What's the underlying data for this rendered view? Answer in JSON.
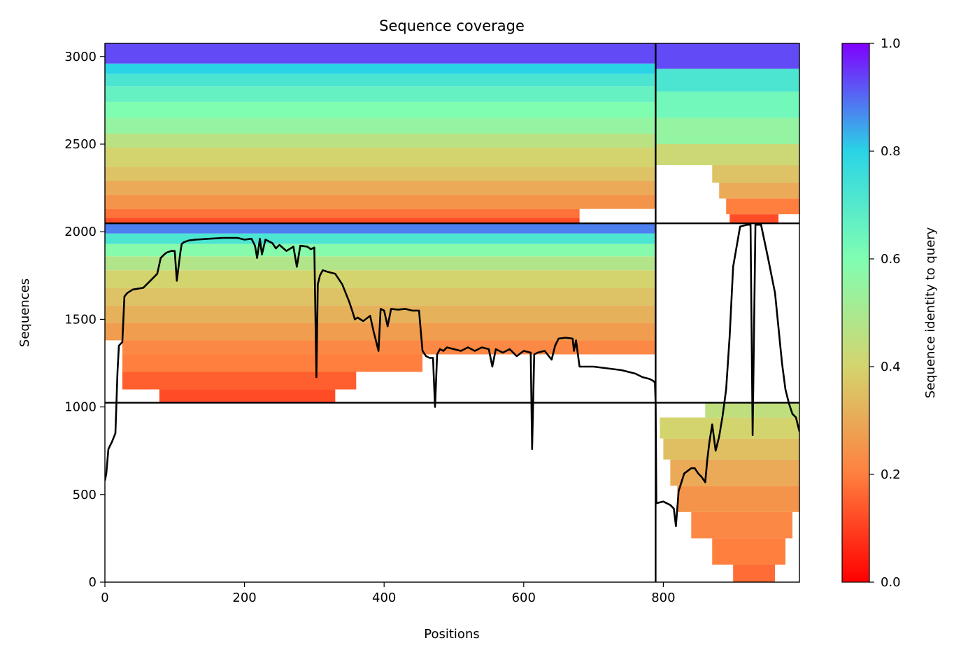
{
  "chart_data": {
    "type": "heatmap",
    "title": "Sequence coverage",
    "xlabel": "Positions",
    "ylabel": "Sequences",
    "xlim": [
      0,
      995
    ],
    "ylim": [
      0,
      3075
    ],
    "x_ticks": [
      0,
      200,
      400,
      600,
      800
    ],
    "y_ticks": [
      0,
      500,
      1000,
      1500,
      2000,
      2500,
      3000
    ],
    "colorbar": {
      "label": "Sequence identity to query",
      "colormap": "rainbow",
      "range": [
        0,
        1
      ],
      "ticks": [
        0.0,
        0.2,
        0.4,
        0.6,
        0.8,
        1.0
      ],
      "tick_labels": [
        "0.0",
        "0.2",
        "0.4",
        "0.6",
        "0.8",
        "1.0"
      ],
      "stops": [
        "#ff0000",
        "#ff7f3f",
        "#d4d46e",
        "#7ffeb2",
        "#2ad4e6",
        "#8000ff"
      ]
    },
    "dividers": {
      "vertical_x": 789,
      "horizontal_y": [
        1024,
        2048
      ]
    },
    "blocks": [
      {
        "x": [
          0,
          789
        ],
        "rows": [
          2048,
          3075
        ],
        "bands": [
          {
            "rows": [
              2048,
              2080
            ],
            "x": [
              0,
              680
            ],
            "identity": 0.12
          },
          {
            "rows": [
              2080,
              2130
            ],
            "x": [
              0,
              680
            ],
            "identity": 0.18
          },
          {
            "rows": [
              2130,
              2210
            ],
            "x": [
              0,
              789
            ],
            "identity": 0.25
          },
          {
            "rows": [
              2210,
              2290
            ],
            "x": [
              0,
              789
            ],
            "identity": 0.3
          },
          {
            "rows": [
              2290,
              2370
            ],
            "x": [
              0,
              789
            ],
            "identity": 0.36
          },
          {
            "rows": [
              2370,
              2480
            ],
            "x": [
              0,
              789
            ],
            "identity": 0.4
          },
          {
            "rows": [
              2480,
              2560
            ],
            "x": [
              0,
              789
            ],
            "identity": 0.46
          },
          {
            "rows": [
              2560,
              2650
            ],
            "x": [
              0,
              789
            ],
            "identity": 0.55
          },
          {
            "rows": [
              2650,
              2740
            ],
            "x": [
              0,
              789
            ],
            "identity": 0.6
          },
          {
            "rows": [
              2740,
              2830
            ],
            "x": [
              0,
              789
            ],
            "identity": 0.66
          },
          {
            "rows": [
              2830,
              2900
            ],
            "x": [
              0,
              789
            ],
            "identity": 0.72
          },
          {
            "rows": [
              2900,
              2960
            ],
            "x": [
              0,
              789
            ],
            "identity": 0.8
          },
          {
            "rows": [
              2960,
              3075
            ],
            "x": [
              0,
              789
            ],
            "identity": 0.93
          }
        ]
      },
      {
        "x": [
          789,
          995
        ],
        "rows": [
          2048,
          3075
        ],
        "bands": [
          {
            "rows": [
              2048,
              2100
            ],
            "x": [
              895,
              965
            ],
            "identity": 0.12
          },
          {
            "rows": [
              2100,
              2190
            ],
            "x": [
              890,
              995
            ],
            "identity": 0.2
          },
          {
            "rows": [
              2190,
              2280
            ],
            "x": [
              880,
              995
            ],
            "identity": 0.3
          },
          {
            "rows": [
              2280,
              2380
            ],
            "x": [
              870,
              995
            ],
            "identity": 0.36
          },
          {
            "rows": [
              2380,
              2500
            ],
            "x": [
              789,
              995
            ],
            "identity": 0.42
          },
          {
            "rows": [
              2500,
              2650
            ],
            "x": [
              789,
              995
            ],
            "identity": 0.55
          },
          {
            "rows": [
              2650,
              2800
            ],
            "x": [
              789,
              995
            ],
            "identity": 0.63
          },
          {
            "rows": [
              2800,
              2930
            ],
            "x": [
              789,
              995
            ],
            "identity": 0.72
          },
          {
            "rows": [
              2930,
              3075
            ],
            "x": [
              789,
              995
            ],
            "identity": 0.93
          }
        ]
      },
      {
        "x": [
          0,
          789
        ],
        "rows": [
          1024,
          2048
        ],
        "bands": [
          {
            "rows": [
              1024,
              1100
            ],
            "x": [
              78,
              330
            ],
            "identity": 0.12
          },
          {
            "rows": [
              1100,
              1200
            ],
            "x": [
              25,
              360
            ],
            "identity": 0.15
          },
          {
            "rows": [
              1200,
              1300
            ],
            "x": [
              25,
              455
            ],
            "identity": 0.2
          },
          {
            "rows": [
              1300,
              1380
            ],
            "x": [
              25,
              789
            ],
            "identity": 0.22
          },
          {
            "rows": [
              1380,
              1480
            ],
            "x": [
              0,
              789
            ],
            "identity": 0.27
          },
          {
            "rows": [
              1480,
              1580
            ],
            "x": [
              0,
              789
            ],
            "identity": 0.32
          },
          {
            "rows": [
              1580,
              1680
            ],
            "x": [
              0,
              789
            ],
            "identity": 0.36
          },
          {
            "rows": [
              1680,
              1780
            ],
            "x": [
              0,
              789
            ],
            "identity": 0.4
          },
          {
            "rows": [
              1780,
              1860
            ],
            "x": [
              0,
              789
            ],
            "identity": 0.48
          },
          {
            "rows": [
              1860,
              1930
            ],
            "x": [
              0,
              789
            ],
            "identity": 0.58
          },
          {
            "rows": [
              1930,
              1990
            ],
            "x": [
              0,
              789
            ],
            "identity": 0.72
          },
          {
            "rows": [
              1990,
              2048
            ],
            "x": [
              0,
              789
            ],
            "identity": 0.88
          }
        ]
      },
      {
        "x": [
          789,
          995
        ],
        "rows": [
          0,
          1024
        ],
        "bands": [
          {
            "rows": [
              0,
              100
            ],
            "x": [
              900,
              960
            ],
            "identity": 0.17
          },
          {
            "rows": [
              100,
              250
            ],
            "x": [
              870,
              975
            ],
            "identity": 0.2
          },
          {
            "rows": [
              250,
              400
            ],
            "x": [
              840,
              985
            ],
            "identity": 0.22
          },
          {
            "rows": [
              400,
              550
            ],
            "x": [
              820,
              995
            ],
            "identity": 0.25
          },
          {
            "rows": [
              550,
              700
            ],
            "x": [
              810,
              995
            ],
            "identity": 0.3
          },
          {
            "rows": [
              700,
              820
            ],
            "x": [
              800,
              995
            ],
            "identity": 0.35
          },
          {
            "rows": [
              820,
              940
            ],
            "x": [
              795,
              995
            ],
            "identity": 0.4
          },
          {
            "rows": [
              940,
              1024
            ],
            "x": [
              860,
              995
            ],
            "identity": 0.45
          }
        ]
      }
    ],
    "coverage_line": {
      "x": [
        0,
        2,
        5,
        10,
        15,
        18,
        20,
        25,
        28,
        32,
        40,
        55,
        65,
        75,
        80,
        85,
        88,
        95,
        100,
        103,
        108,
        110,
        113,
        120,
        130,
        150,
        170,
        190,
        200,
        210,
        215,
        218,
        222,
        225,
        230,
        240,
        245,
        250,
        260,
        270,
        275,
        280,
        290,
        295,
        300,
        303,
        305,
        308,
        312,
        320,
        330,
        340,
        350,
        355,
        358,
        362,
        370,
        380,
        385,
        392,
        395,
        400,
        405,
        410,
        420,
        430,
        440,
        450,
        455,
        460,
        465,
        470,
        473,
        476,
        480,
        485,
        490,
        500,
        510,
        520,
        530,
        540,
        550,
        555,
        560,
        570,
        580,
        590,
        600,
        610,
        612,
        615,
        620,
        630,
        640,
        645,
        650,
        660,
        670,
        672,
        675,
        680,
        700,
        720,
        740,
        760,
        770,
        780,
        785,
        788,
        789,
        790,
        800,
        810,
        815,
        818,
        822,
        830,
        840,
        845,
        850,
        855,
        860,
        863,
        866,
        870,
        875,
        880,
        885,
        890,
        895,
        900,
        910,
        920,
        925,
        928,
        932,
        940,
        950,
        960,
        965,
        970,
        975,
        980,
        985,
        990,
        995
      ],
      "y": [
        580,
        620,
        760,
        800,
        850,
        1200,
        1350,
        1370,
        1630,
        1650,
        1670,
        1680,
        1720,
        1760,
        1850,
        1870,
        1880,
        1890,
        1890,
        1720,
        1880,
        1930,
        1940,
        1950,
        1955,
        1960,
        1965,
        1965,
        1955,
        1960,
        1920,
        1850,
        1960,
        1870,
        1955,
        1935,
        1905,
        1925,
        1890,
        1915,
        1800,
        1920,
        1915,
        1900,
        1910,
        1170,
        1700,
        1750,
        1780,
        1770,
        1760,
        1700,
        1600,
        1540,
        1500,
        1510,
        1490,
        1520,
        1430,
        1320,
        1560,
        1550,
        1460,
        1560,
        1555,
        1560,
        1550,
        1550,
        1320,
        1290,
        1280,
        1280,
        1000,
        1300,
        1330,
        1320,
        1340,
        1330,
        1320,
        1340,
        1320,
        1340,
        1330,
        1230,
        1330,
        1310,
        1330,
        1290,
        1320,
        1310,
        760,
        1300,
        1310,
        1320,
        1270,
        1350,
        1390,
        1395,
        1390,
        1320,
        1380,
        1230,
        1230,
        1220,
        1210,
        1190,
        1170,
        1160,
        1150,
        1140,
        1020,
        450,
        460,
        440,
        420,
        320,
        520,
        620,
        650,
        650,
        620,
        600,
        570,
        700,
        800,
        900,
        750,
        830,
        950,
        1100,
        1400,
        1800,
        2030,
        2040,
        2040,
        840,
        2040,
        2040,
        1850,
        1650,
        1450,
        1250,
        1100,
        1020,
        960,
        940,
        860
      ]
    }
  }
}
